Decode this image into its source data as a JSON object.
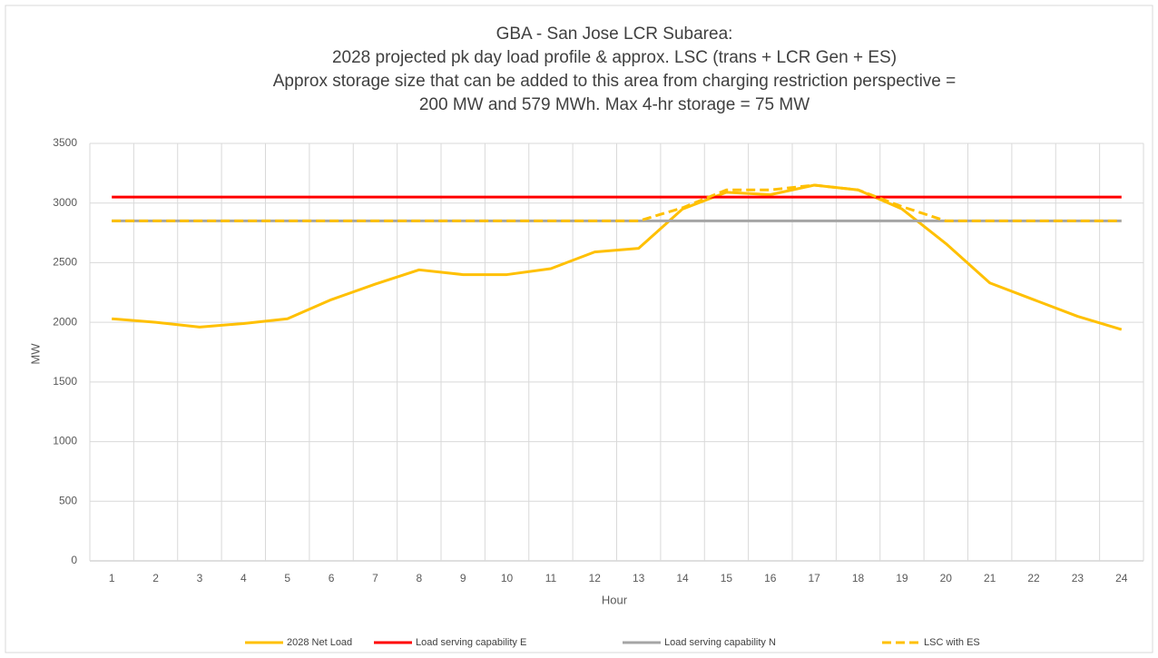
{
  "chart_data": {
    "type": "line",
    "title": [
      "GBA - San Jose LCR Subarea:",
      "2028 projected pk day load profile & approx. LSC (trans + LCR Gen + ES)",
      "Approx storage size that can be added to this area from charging restriction perspective =",
      "200 MW and 579 MWh. Max 4-hr storage = 75 MW"
    ],
    "x_label": "Hour",
    "y_label": "MW",
    "categories": [
      1,
      2,
      3,
      4,
      5,
      6,
      7,
      8,
      9,
      10,
      11,
      12,
      13,
      14,
      15,
      16,
      17,
      18,
      19,
      20,
      21,
      22,
      23,
      24
    ],
    "series": [
      {
        "name": "2028 Net Load",
        "color": "#ffc000",
        "dashed": false,
        "values": [
          2030,
          2000,
          1960,
          1990,
          2030,
          2190,
          2320,
          2440,
          2400,
          2400,
          2450,
          2590,
          2620,
          2950,
          3090,
          3070,
          3150,
          3110,
          2950,
          2660,
          2330,
          2190,
          2050,
          1940
        ]
      },
      {
        "name": "Load serving capability E",
        "color": "#ff0000",
        "dashed": false,
        "values": [
          3050,
          3050,
          3050,
          3050,
          3050,
          3050,
          3050,
          3050,
          3050,
          3050,
          3050,
          3050,
          3050,
          3050,
          3050,
          3050,
          3050,
          3050,
          3050,
          3050,
          3050,
          3050,
          3050,
          3050
        ]
      },
      {
        "name": "Load serving capability N",
        "color": "#a5a5a5",
        "dashed": false,
        "values": [
          2850,
          2850,
          2850,
          2850,
          2850,
          2850,
          2850,
          2850,
          2850,
          2850,
          2850,
          2850,
          2850,
          2850,
          2850,
          2850,
          2850,
          2850,
          2850,
          2850,
          2850,
          2850,
          2850,
          2850
        ]
      },
      {
        "name": "LSC with ES",
        "color": "#ffc000",
        "dashed": true,
        "values": [
          2850,
          2850,
          2850,
          2850,
          2850,
          2850,
          2850,
          2850,
          2850,
          2850,
          2850,
          2850,
          2850,
          2960,
          3110,
          3110,
          3150,
          3110,
          2970,
          2850,
          2850,
          2850,
          2850,
          2850
        ]
      }
    ],
    "ylim": [
      0,
      3500
    ],
    "yticks": [
      0,
      500,
      1000,
      1500,
      2000,
      2500,
      3000,
      3500
    ],
    "grid": true,
    "legend": "bottom"
  }
}
